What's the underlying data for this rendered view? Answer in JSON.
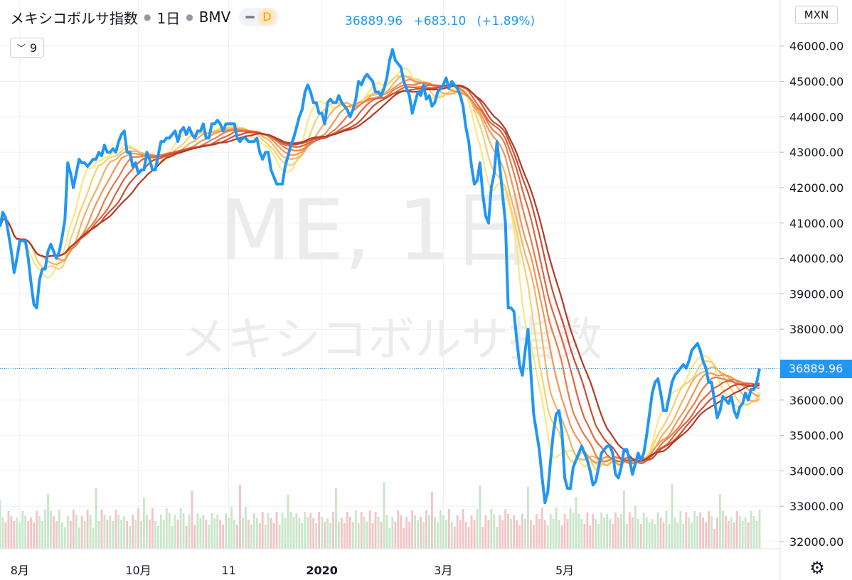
{
  "legend": {
    "symbol_name": "メキシコボルサ指数",
    "interval": "1日",
    "exchange": "BMV",
    "d_badge": "D"
  },
  "quote": {
    "last": "36889.96",
    "change": "+683.10",
    "change_pct": "(+1.89%)"
  },
  "study_button": {
    "count": "9"
  },
  "currency": "MXN",
  "last_price_label": "36889.96",
  "watermark": {
    "line1": "ME, 1日",
    "line2": "メキシコボルサ指数"
  },
  "colors": {
    "price_line": "#2196f3",
    "ribbon": [
      "#fbe77c",
      "#f9cf6d",
      "#f5b260",
      "#f09754",
      "#ea7c49",
      "#e0643f",
      "#cf4d33",
      "#b33926"
    ],
    "volume_up": "#c8e6c9",
    "volume_down": "#f3c4c6",
    "grid": "#eef0f3"
  },
  "chart_data": {
    "type": "line",
    "title": "",
    "x_axis": {
      "labels": [
        "8月",
        "10月",
        "11",
        "2020",
        "3月",
        "5月"
      ],
      "label_index": [
        7,
        49,
        81,
        114,
        157,
        200
      ]
    },
    "y_axis": {
      "ticks": [
        32000,
        33000,
        34000,
        35000,
        36000,
        37000,
        38000,
        39000,
        40000,
        41000,
        42000,
        43000,
        44000,
        45000,
        46000
      ],
      "range": [
        31800,
        47300
      ]
    },
    "last_value": 36889.96,
    "grid": true,
    "series": [
      {
        "values": [
          40900,
          41300,
          41150,
          40700,
          40200,
          39600,
          40000,
          40500,
          40500,
          40500,
          40000,
          39300,
          38700,
          38600,
          39400,
          39700,
          39700,
          40200,
          40400,
          40200,
          40000,
          40200,
          40600,
          41100,
          42700,
          42400,
          42000,
          42400,
          42800,
          42700,
          42700,
          42600,
          42700,
          42800,
          42800,
          43000,
          42900,
          43200,
          43000,
          43000,
          43100,
          43000,
          43300,
          43500,
          43600,
          43000,
          43000,
          42600,
          42700,
          42400,
          42500,
          42500,
          43000,
          42800,
          42500,
          42500,
          42900,
          43300,
          43300,
          43400,
          43400,
          43500,
          43600,
          43300,
          43600,
          43700,
          43500,
          43700,
          43500,
          43400,
          43600,
          43600,
          43800,
          43400,
          43400,
          43800,
          43800,
          43900,
          43800,
          43600,
          43800,
          43800,
          43800,
          43800,
          43400,
          43300,
          43400,
          43400,
          43300,
          43300,
          43300,
          43400,
          43000,
          42800,
          43000,
          43000,
          42500,
          42300,
          42100,
          42100,
          42100,
          42600,
          42900,
          43200,
          43400,
          43700,
          44000,
          44200,
          44700,
          44900,
          44700,
          44400,
          44400,
          44100,
          44100,
          43800,
          44400,
          44500,
          44400,
          44400,
          44600,
          44400,
          44300,
          44200,
          44000,
          44200,
          44500,
          45000,
          44900,
          45100,
          45200,
          45100,
          45000,
          44700,
          44700,
          44600,
          44800,
          45100,
          45600,
          45900,
          45600,
          45500,
          45400,
          45000,
          44800,
          44600,
          44100,
          44400,
          44700,
          44600,
          44900,
          44500,
          44600,
          44300,
          44400,
          44700,
          44800,
          44900,
          45100,
          44800,
          45000,
          44900,
          44800,
          44600,
          44300,
          43700,
          43300,
          42600,
          42100,
          42200,
          42700,
          41800,
          41200,
          41000,
          42000,
          42400,
          43300,
          42600,
          41800,
          41000,
          38600,
          38600,
          38500,
          37700,
          37000,
          36700,
          37400,
          38000,
          36800,
          35600,
          35100,
          34600,
          33800,
          33100,
          33400,
          34300,
          35100,
          35600,
          35700,
          35100,
          33800,
          33500,
          33500,
          34100,
          34300,
          34500,
          34700,
          34500,
          34300,
          34000,
          33600,
          33700,
          34100,
          34500,
          34600,
          34700,
          34700,
          34500,
          33900,
          33800,
          34100,
          34600,
          34600,
          34300,
          33900,
          34200,
          34500,
          34300,
          34500,
          35000,
          35600,
          36200,
          36500,
          36600,
          36200,
          35700,
          35700,
          36100,
          36500,
          36700,
          36800,
          36900,
          37000,
          36900,
          37100,
          37400,
          37500,
          37600,
          37400,
          37100,
          36900,
          36500,
          36500,
          36000,
          35500,
          35700,
          36100,
          36000,
          35900,
          36100,
          35700,
          35500,
          35800,
          35900,
          36200,
          36000,
          36300,
          36300,
          36500,
          36889.96
        ],
        "color_key": "price_line"
      }
    ]
  }
}
